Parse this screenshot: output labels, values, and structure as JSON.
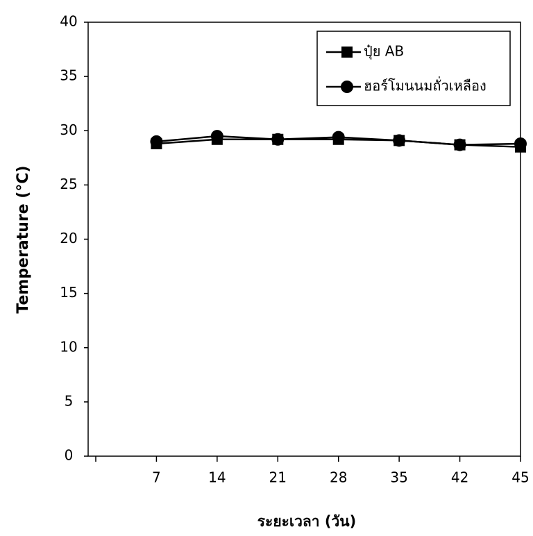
{
  "chart_data": {
    "type": "line",
    "x_label": "ระยะเวลา (วัน)",
    "y_label": "Temperature (°C)",
    "categories": [
      null,
      "7",
      "14",
      "21",
      "28",
      "35",
      "42",
      "45"
    ],
    "series": [
      {
        "name": "ปุ๋ย AB",
        "color": "#000000",
        "marker": "square",
        "values": [
          null,
          28.8,
          29.2,
          29.2,
          29.2,
          29.1,
          28.7,
          28.5
        ]
      },
      {
        "name": "ฮอร์โมนนมถั่วเหลือง",
        "color": "#000000",
        "marker": "circle",
        "values": [
          null,
          29.0,
          29.5,
          29.2,
          29.4,
          29.1,
          28.7,
          28.8
        ]
      }
    ],
    "ylim": [
      0,
      40
    ],
    "yticks": [
      0,
      5,
      10,
      15,
      20,
      25,
      30,
      35,
      40
    ],
    "grid": false,
    "legend": "upper right"
  }
}
